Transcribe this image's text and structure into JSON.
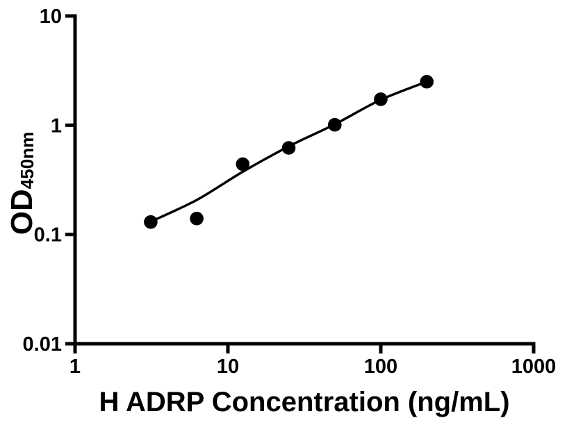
{
  "figure": {
    "background_color": "#ffffff",
    "foreground_color": "#000000"
  },
  "chart_data": {
    "type": "scatter",
    "subtype": "elisa-standard-curve",
    "title": "",
    "xlabel": "H ADRP Concentration (ng/mL)",
    "ylabel_main": "OD",
    "ylabel_sub": "450nm",
    "x_scale": "log10",
    "y_scale": "log10",
    "xlim": [
      1,
      1000
    ],
    "ylim": [
      0.01,
      10
    ],
    "grid": false,
    "legend": null,
    "x_ticks": [
      {
        "value": 1,
        "label": "1"
      },
      {
        "value": 10,
        "label": "10"
      },
      {
        "value": 100,
        "label": "100"
      },
      {
        "value": 1000,
        "label": "1000"
      }
    ],
    "y_ticks": [
      {
        "value": 10,
        "label": "10"
      },
      {
        "value": 1,
        "label": "1"
      },
      {
        "value": 0.1,
        "label": "0.1"
      },
      {
        "value": 0.01,
        "label": "0.01"
      }
    ],
    "series": [
      {
        "name": "standard curve data points",
        "marker": "filled-circle",
        "marker_color": "#000000",
        "points": [
          {
            "x": 3.125,
            "y": 0.13
          },
          {
            "x": 6.25,
            "y": 0.14
          },
          {
            "x": 12.5,
            "y": 0.44
          },
          {
            "x": 25,
            "y": 0.62
          },
          {
            "x": 50,
            "y": 1.01
          },
          {
            "x": 100,
            "y": 1.73
          },
          {
            "x": 200,
            "y": 2.5
          }
        ]
      }
    ],
    "fit_curve": {
      "name": "fitted standard curve line",
      "color": "#000000",
      "points": [
        {
          "x": 3.125,
          "y": 0.131
        },
        {
          "x": 6.25,
          "y": 0.207
        },
        {
          "x": 12.5,
          "y": 0.375
        },
        {
          "x": 25,
          "y": 0.64
        },
        {
          "x": 50,
          "y": 1.02
        },
        {
          "x": 100,
          "y": 1.71
        },
        {
          "x": 200,
          "y": 2.5
        }
      ]
    }
  }
}
